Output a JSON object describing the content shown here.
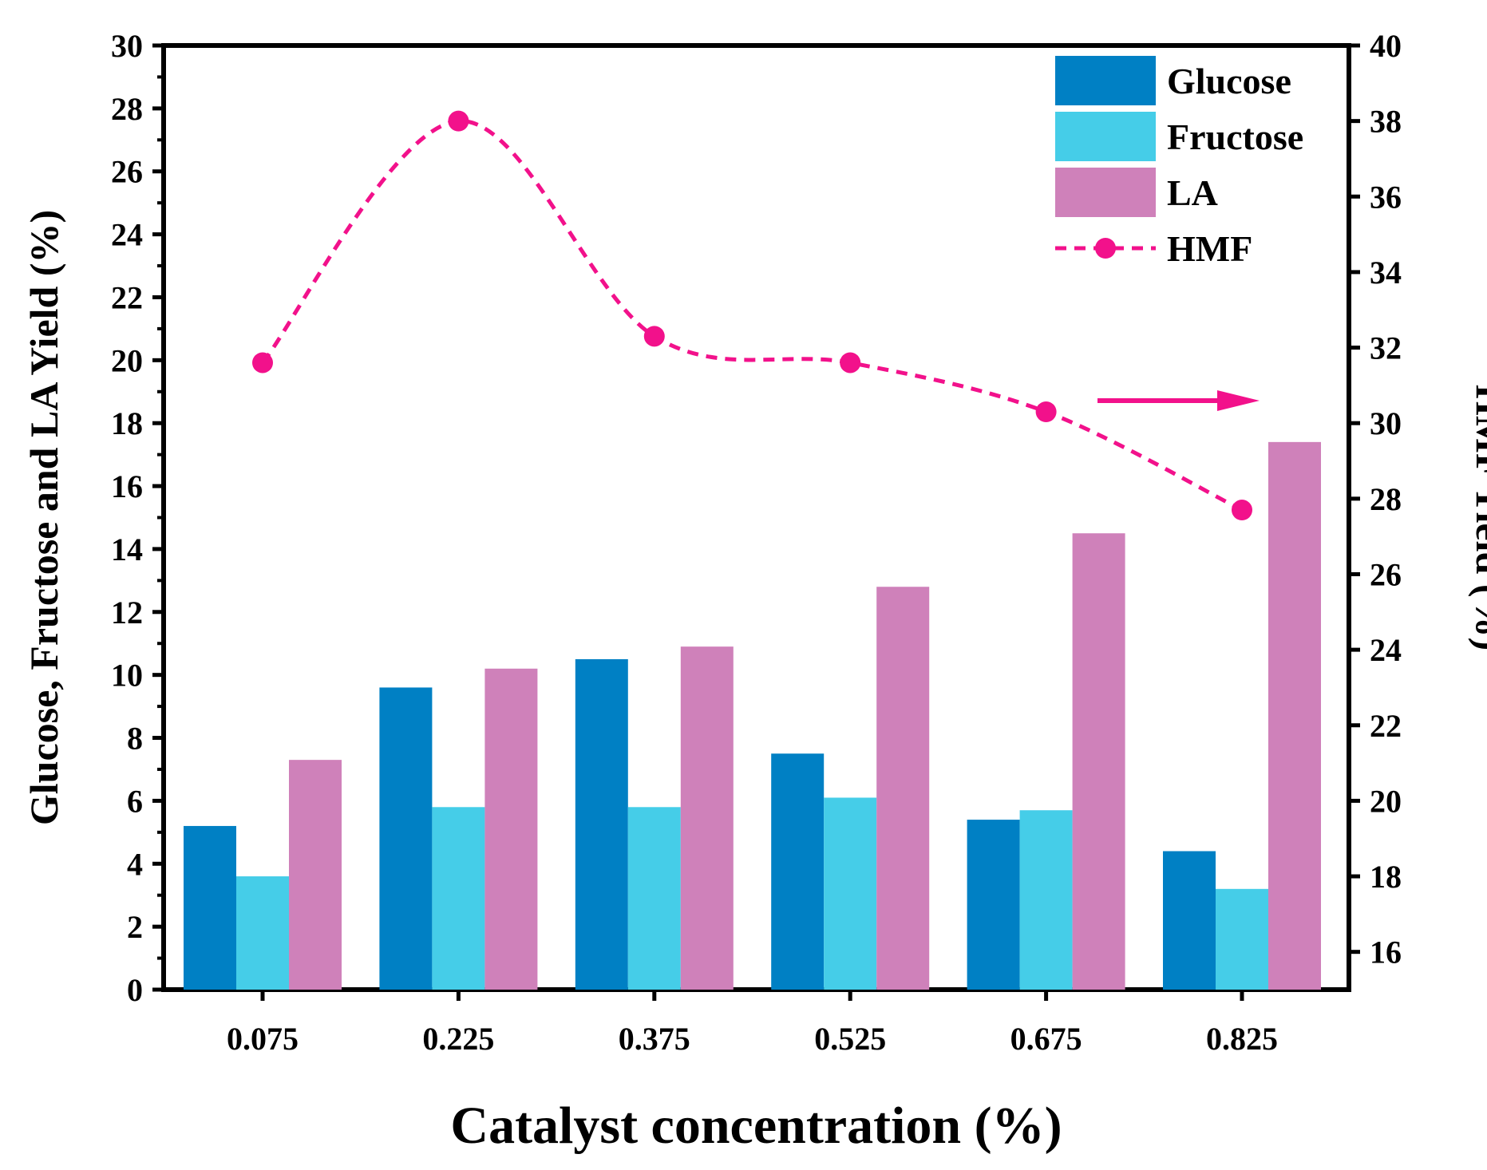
{
  "chart_data": {
    "type": "bar",
    "categories": [
      "0.075",
      "0.225",
      "0.375",
      "0.525",
      "0.675",
      "0.825"
    ],
    "xlabel": "Catalyst concentration (%)",
    "ylabel": "Glucose, Fructose and LA Yield (%)",
    "y2label": "HMF Yield (%)",
    "ylim": [
      0,
      30
    ],
    "y2lim": [
      15,
      40
    ],
    "y_ticks": [
      "0",
      "2",
      "4",
      "6",
      "8",
      "10",
      "12",
      "14",
      "16",
      "18",
      "20",
      "22",
      "24",
      "26",
      "28",
      "30"
    ],
    "y2_ticks": [
      "16",
      "18",
      "20",
      "22",
      "24",
      "26",
      "28",
      "30",
      "32",
      "34",
      "36",
      "38",
      "40"
    ],
    "series": [
      {
        "name": "Glucose",
        "axis": "left",
        "kind": "bar",
        "color": "#0080c4",
        "values": [
          5.2,
          9.6,
          10.5,
          7.5,
          5.4,
          4.4
        ]
      },
      {
        "name": "Fructose",
        "axis": "left",
        "kind": "bar",
        "color": "#45cde8",
        "values": [
          3.6,
          5.8,
          5.8,
          6.1,
          5.7,
          3.2
        ]
      },
      {
        "name": "LA",
        "axis": "left",
        "kind": "bar",
        "color": "#cf81ba",
        "values": [
          7.3,
          10.2,
          10.9,
          12.8,
          14.5,
          17.4
        ]
      },
      {
        "name": "HMF",
        "axis": "right",
        "kind": "line",
        "style": "dashed-smooth",
        "marker": "circle",
        "color": "#f2118b",
        "values": [
          31.6,
          38.0,
          32.3,
          31.6,
          30.3,
          27.7
        ]
      }
    ],
    "grid": false,
    "legend_position": "top-right",
    "annotation": {
      "type": "arrow",
      "direction": "right",
      "points_to_axis": "right",
      "color": "#f2118b"
    }
  }
}
